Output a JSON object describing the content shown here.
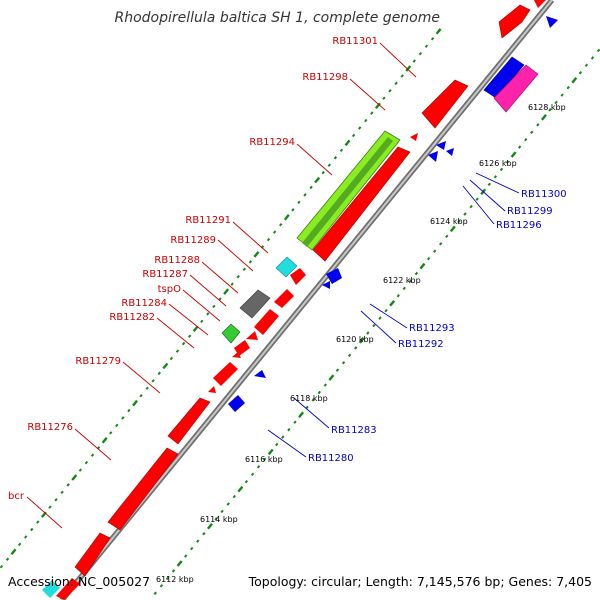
{
  "title": "Rhodopirellula baltica SH 1, complete genome",
  "accession": "Accession: NC_005027",
  "summary": "Topology: circular; Length: 7,145,576 bp; Genes: 7,405",
  "colors": {
    "forward_label": "#cc0000",
    "reverse_label": "#0000cc",
    "backbone": "#888888",
    "tick": "#118811"
  },
  "kbp_labels": [
    "6112 kbp",
    "6114 kbp",
    "6116 kbp",
    "6118 kbp",
    "6120 kbp",
    "6122 kbp",
    "6124 kbp",
    "6126 kbp",
    "6128 kbp"
  ],
  "forward_labels": [
    "RB11301",
    "RB11298",
    "RB11294",
    "RB11291",
    "RB11289",
    "RB11288",
    "RB11287",
    "tspO",
    "RB11284",
    "RB11282",
    "RB11279",
    "RB11276",
    "bcr"
  ],
  "reverse_labels": [
    "RB11300",
    "RB11299",
    "RB11296",
    "RB11293",
    "RB11292",
    "RB11283",
    "RB11280"
  ]
}
